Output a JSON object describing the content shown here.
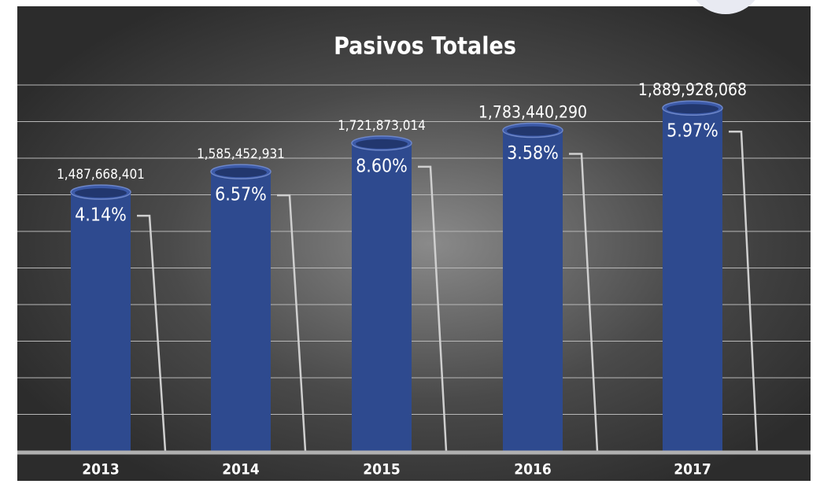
{
  "chart_data": {
    "type": "bar",
    "title": "Pasivos Totales",
    "categories": [
      "2013",
      "2014",
      "2015",
      "2016",
      "2017"
    ],
    "values": [
      1487668401,
      1585452931,
      1721873014,
      1783440290,
      1889928068
    ],
    "value_labels": [
      "1,487,668,401",
      "1,585,452,931",
      "1,721,873,014",
      "1,783,440,290",
      "1,889,928,068"
    ],
    "color": "#2e4a8f",
    "growth": {
      "values": [
        4.14,
        6.57,
        8.6,
        3.58,
        5.97
      ],
      "value_labels": [
        "4.14%",
        "6.57%",
        "8.60%",
        "3.58%",
        "5.97%"
      ]
    },
    "ylim": [
      250000000,
      2000000000
    ],
    "grid": true
  }
}
